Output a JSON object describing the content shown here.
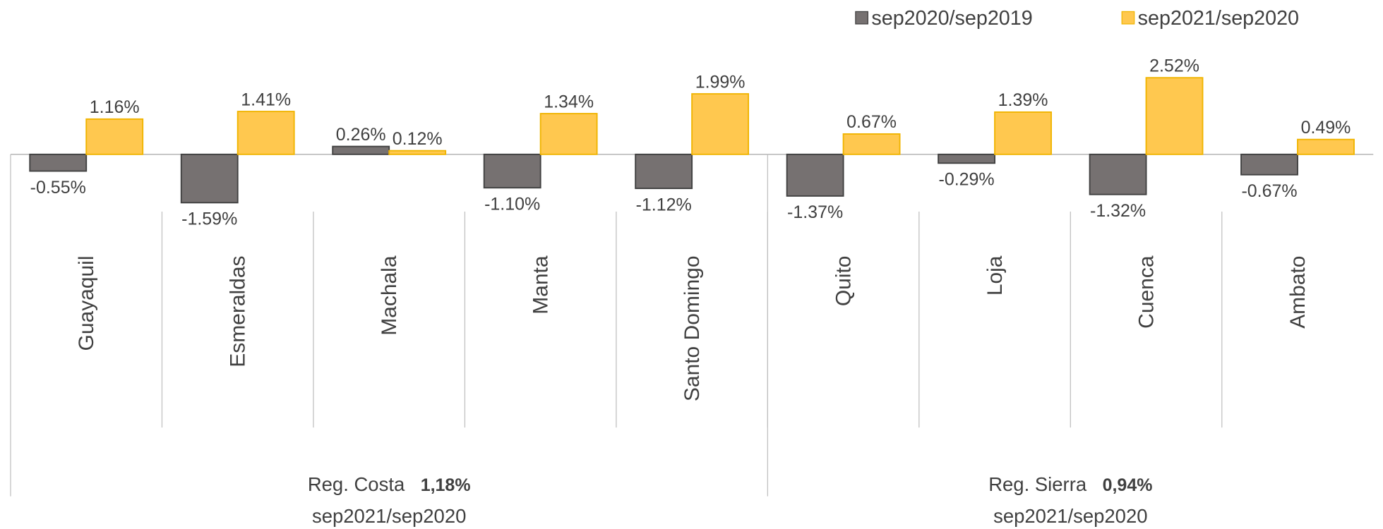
{
  "chart_data": {
    "type": "bar",
    "categories": [
      "Guayaquil",
      "Esmeraldas",
      "Machala",
      "Manta",
      "Santo Domingo",
      "Quito",
      "Loja",
      "Cuenca",
      "Ambato"
    ],
    "series": [
      {
        "name": "sep2020/sep2019",
        "color": "#767171",
        "values": [
          -0.55,
          -1.59,
          0.26,
          -1.1,
          -1.12,
          -1.37,
          -0.29,
          -1.32,
          -0.67
        ],
        "value_labels": [
          "-0.55%",
          "-1.59%",
          "0.26%",
          "-1.10%",
          "-1.12%",
          "-1.37%",
          "-0.29%",
          "-1.32%",
          "-0.67%"
        ]
      },
      {
        "name": "sep2021/sep2020",
        "color": "#ffc84f",
        "values": [
          1.16,
          1.41,
          0.12,
          1.34,
          1.99,
          0.67,
          1.39,
          2.52,
          0.49
        ],
        "value_labels": [
          "1.16%",
          "1.41%",
          "0.12%",
          "1.34%",
          "1.99%",
          "0.67%",
          "1.39%",
          "2.52%",
          "0.49%"
        ]
      }
    ],
    "groups": [
      {
        "name": "Reg. Costa",
        "value": 1.18,
        "value_label": "1,18%",
        "subtitle": "sep2021/sep2020",
        "size": 5
      },
      {
        "name": "Reg. Sierra",
        "value": 0.94,
        "value_label": "0,94%",
        "subtitle": "sep2021/sep2020",
        "size": 4
      }
    ],
    "legend": "top-right"
  }
}
